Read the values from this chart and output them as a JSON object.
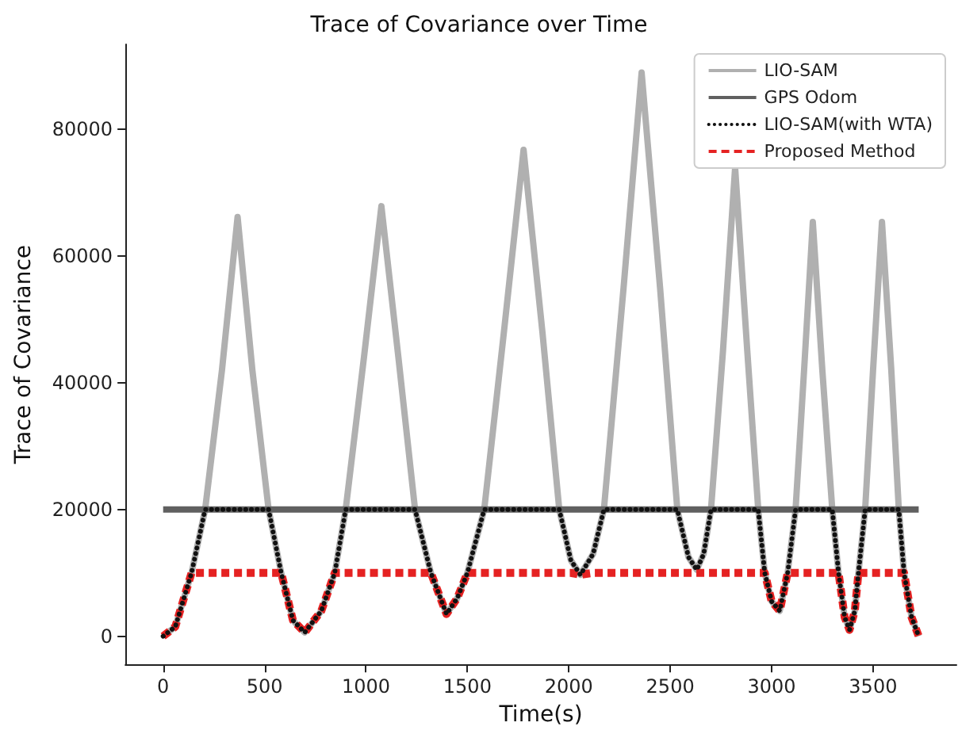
{
  "chart_data": {
    "type": "line",
    "title": "Trace of Covariance over Time",
    "xlabel": "Time(s)",
    "ylabel": "Trace of Covariance",
    "xlim": [
      -186,
      3911
    ],
    "xticks": [
      0,
      500,
      1000,
      1500,
      2000,
      2500,
      3000,
      3500
    ],
    "ylim": [
      -4450,
      93450
    ],
    "yticks": [
      0,
      20000,
      40000,
      60000,
      80000
    ],
    "grid": false,
    "legend": "top right",
    "marker": "none",
    "x": [
      0,
      60,
      140,
      207,
      290,
      367,
      440,
      520,
      582,
      640,
      698,
      780,
      846,
      900,
      990,
      1076,
      1160,
      1242,
      1320,
      1397,
      1450,
      1500,
      1583,
      1680,
      1777,
      1870,
      1953,
      2010,
      2057,
      2120,
      2173,
      2270,
      2359,
      2450,
      2535,
      2590,
      2631,
      2665,
      2701,
      2760,
      2820,
      2880,
      2934,
      2966,
      3000,
      3040,
      3079,
      3118,
      3160,
      3203,
      3250,
      3299,
      3330,
      3360,
      3384,
      3410,
      3428,
      3461,
      3500,
      3544,
      3590,
      3627,
      3653,
      3690,
      3725
    ],
    "series": [
      {
        "name": "LIO-SAM",
        "color": "#b0b0b0",
        "line_style": "solid",
        "values": [
          0,
          1500,
          10000,
          20000,
          42000,
          66200,
          42000,
          20000,
          10000,
          2500,
          600,
          4000,
          10000,
          20000,
          44000,
          67900,
          44000,
          20000,
          10000,
          3500,
          6000,
          10000,
          20000,
          48000,
          76800,
          48000,
          20000,
          12000,
          9700,
          13000,
          20000,
          55000,
          89000,
          55000,
          20000,
          12500,
          10500,
          13000,
          20000,
          45000,
          74000,
          45000,
          20000,
          10000,
          5500,
          4000,
          10000,
          20000,
          42000,
          65400,
          42000,
          20000,
          10000,
          3000,
          1000,
          4000,
          10000,
          20000,
          42000,
          65400,
          42000,
          20000,
          10000,
          3000,
          0
        ]
      },
      {
        "name": "GPS Odom",
        "color": "#606060",
        "line_style": "solid",
        "x": [
          0,
          3725
        ],
        "values": [
          20000,
          20000
        ]
      },
      {
        "name": "LIO-SAM(with WTA)",
        "color": "#111111",
        "line_style": "dotted",
        "values": [
          0,
          1500,
          10000,
          20000,
          20000,
          20000,
          20000,
          20000,
          10000,
          2500,
          600,
          4000,
          10000,
          20000,
          20000,
          20000,
          20000,
          20000,
          10000,
          3500,
          6000,
          10000,
          20000,
          20000,
          20000,
          20000,
          20000,
          12000,
          9700,
          13000,
          20000,
          20000,
          20000,
          20000,
          20000,
          12500,
          10500,
          13000,
          20000,
          20000,
          20000,
          20000,
          20000,
          10000,
          5500,
          4000,
          10000,
          20000,
          20000,
          20000,
          20000,
          20000,
          10000,
          3000,
          1000,
          4000,
          10000,
          20000,
          20000,
          20000,
          20000,
          20000,
          10000,
          3000,
          0
        ]
      },
      {
        "name": "Proposed Method",
        "color": "#e52222",
        "line_style": "dashed",
        "values": [
          0,
          1500,
          10000,
          10000,
          10000,
          10000,
          10000,
          10000,
          10000,
          2500,
          600,
          4000,
          10000,
          10000,
          10000,
          10000,
          10000,
          10000,
          10000,
          3500,
          6000,
          10000,
          10000,
          10000,
          10000,
          10000,
          10000,
          10000,
          9700,
          10000,
          10000,
          10000,
          10000,
          10000,
          10000,
          10000,
          10000,
          10000,
          10000,
          10000,
          10000,
          10000,
          10000,
          10000,
          5500,
          4000,
          10000,
          10000,
          10000,
          10000,
          10000,
          10000,
          10000,
          3000,
          1000,
          4000,
          10000,
          10000,
          10000,
          10000,
          10000,
          10000,
          10000,
          3000,
          0
        ]
      }
    ]
  }
}
